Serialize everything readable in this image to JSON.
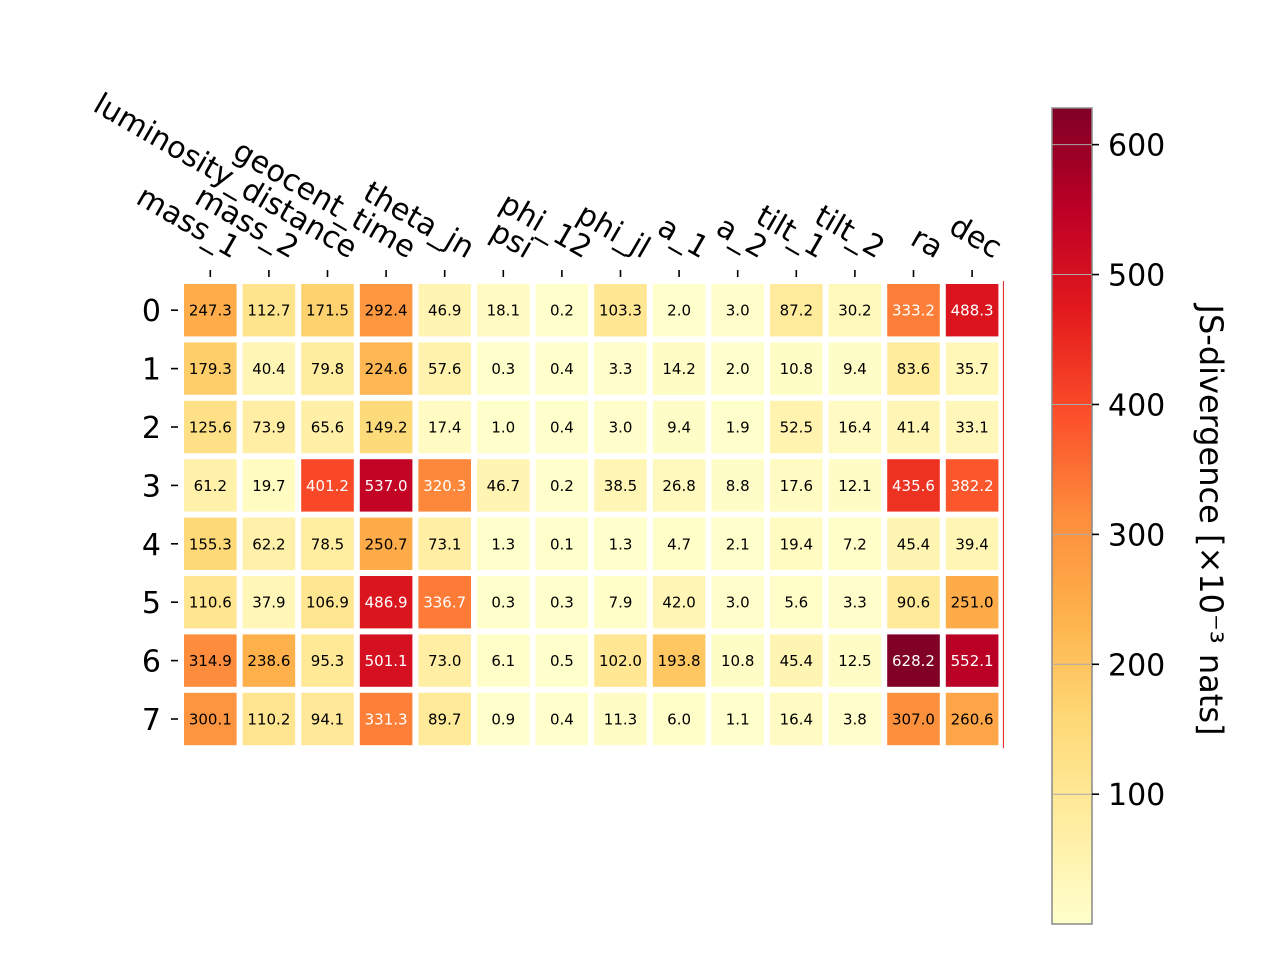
{
  "chart_data": {
    "type": "heatmap",
    "title": "",
    "xlabel": "",
    "ylabel": "",
    "x_categories": [
      "mass_1",
      "mass_2",
      "luminosity_distance",
      "geocent_time",
      "theta_jn",
      "psi",
      "phi_12",
      "phi_jl",
      "a_1",
      "a_2",
      "tilt_1",
      "tilt_2",
      "ra",
      "dec"
    ],
    "y_categories": [
      "0",
      "1",
      "2",
      "3",
      "4",
      "5",
      "6",
      "7"
    ],
    "values": [
      [
        247.3,
        112.7,
        171.5,
        292.4,
        46.9,
        18.1,
        0.2,
        103.3,
        2.0,
        3.0,
        87.2,
        30.2,
        333.2,
        488.3
      ],
      [
        179.3,
        40.4,
        79.8,
        224.6,
        57.6,
        0.3,
        0.4,
        3.3,
        14.2,
        2.0,
        10.8,
        9.4,
        83.6,
        35.7
      ],
      [
        125.6,
        73.9,
        65.6,
        149.2,
        17.4,
        1.0,
        0.4,
        3.0,
        9.4,
        1.9,
        52.5,
        16.4,
        41.4,
        33.1
      ],
      [
        61.2,
        19.7,
        401.2,
        537.0,
        320.3,
        46.7,
        0.2,
        38.5,
        26.8,
        8.8,
        17.6,
        12.1,
        435.6,
        382.2
      ],
      [
        155.3,
        62.2,
        78.5,
        250.7,
        73.1,
        1.3,
        0.1,
        1.3,
        4.7,
        2.1,
        19.4,
        7.2,
        45.4,
        39.4
      ],
      [
        110.6,
        37.9,
        106.9,
        486.9,
        336.7,
        0.3,
        0.3,
        7.9,
        42.0,
        3.0,
        5.6,
        3.3,
        90.6,
        251.0
      ],
      [
        314.9,
        238.6,
        95.3,
        501.1,
        73.0,
        6.1,
        0.5,
        102.0,
        193.8,
        10.8,
        45.4,
        12.5,
        628.2,
        552.1
      ],
      [
        300.1,
        110.2,
        94.1,
        331.3,
        89.7,
        0.9,
        0.4,
        11.3,
        6.0,
        1.1,
        16.4,
        3.8,
        307.0,
        260.6
      ]
    ],
    "colorbar": {
      "label": "JS-divergence [×10⁻³ nats]",
      "ticks": [
        100,
        200,
        300,
        400,
        500,
        600
      ],
      "range": [
        0.1,
        628.2
      ],
      "colormap": "YlOrRd"
    },
    "colormap_stops": [
      "#ffffcc",
      "#ffeda0",
      "#fed976",
      "#feb24c",
      "#fd8d3c",
      "#fc4e2a",
      "#e31a1c",
      "#bd0026",
      "#800026"
    ]
  }
}
